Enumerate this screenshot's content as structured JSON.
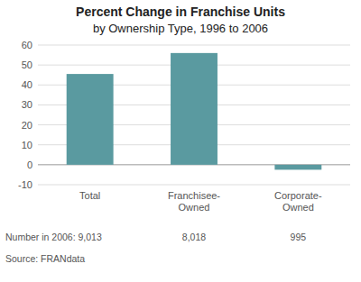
{
  "chart_data": {
    "type": "bar",
    "title": "Percent Change in Franchise Units",
    "subtitle": "by Ownership Type, 1996 to 2006",
    "categories": [
      "Total",
      "Franchisee-\nOwned",
      "Corporate-\nOwned"
    ],
    "values": [
      45.5,
      56.0,
      -2.5
    ],
    "color": "#5a9aa0",
    "ylim": [
      -10,
      60
    ],
    "yticks": [
      -10,
      0,
      10,
      20,
      30,
      40,
      50,
      60
    ],
    "grid": true,
    "annotations": [
      "Number in 2006:",
      "9,013",
      "8,018",
      "995",
      "Source: FRANdata"
    ]
  }
}
